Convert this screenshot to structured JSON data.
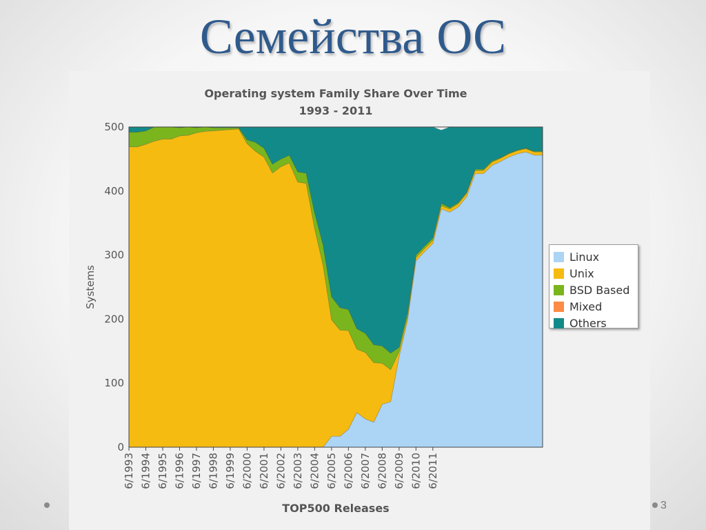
{
  "slide": {
    "title": "Семейства ОС",
    "page_number": "3"
  },
  "chart_data": {
    "type": "area",
    "stacked": true,
    "title": "Operating system Family Share Over Time",
    "subtitle": "1993 - 2011",
    "xlabel": "TOP500 Releases",
    "ylabel": "Systems",
    "ylim": [
      0,
      500
    ],
    "yticks": [
      0,
      100,
      200,
      300,
      400,
      500
    ],
    "xticks": [
      "6/1993",
      "6/1994",
      "6/1995",
      "6/1996",
      "6/1997",
      "6/1998",
      "6/1999",
      "6/2000",
      "6/2001",
      "6/2002",
      "6/2003",
      "6/2004",
      "6/2005",
      "6/2006",
      "6/2007",
      "6/2008",
      "6/2009",
      "6/2010",
      "6/2011"
    ],
    "grid": false,
    "legend_position": "right",
    "series": [
      {
        "name": "Linux",
        "color": "#acd4f5",
        "values": [
          0,
          0,
          0,
          0,
          0,
          0,
          0,
          0,
          0,
          0,
          0,
          0,
          0,
          0,
          0,
          0,
          0,
          0,
          0,
          0,
          0,
          0,
          0,
          0,
          17,
          17,
          28,
          54,
          44,
          39,
          67,
          71,
          141,
          198,
          291,
          305,
          318,
          372,
          367,
          375,
          391,
          427,
          427,
          440,
          446,
          453,
          458,
          461,
          456,
          456
        ]
      },
      {
        "name": "Unix",
        "color": "#f5bb11",
        "values": [
          469,
          469,
          473,
          478,
          481,
          481,
          486,
          487,
          491,
          493,
          494,
          495,
          496,
          497,
          474,
          462,
          453,
          428,
          438,
          444,
          414,
          412,
          341,
          284,
          182,
          166,
          154,
          99,
          104,
          93,
          64,
          50,
          8,
          6,
          5,
          5,
          5,
          5,
          5,
          5,
          5,
          5,
          5,
          5,
          5,
          5,
          5,
          5,
          5,
          5
        ]
      },
      {
        "name": "BSD Based",
        "color": "#7ab51d",
        "values": [
          23,
          23,
          21,
          22,
          19,
          19,
          13,
          13,
          8,
          7,
          5,
          4,
          3,
          2,
          6,
          14,
          14,
          14,
          12,
          12,
          16,
          16,
          25,
          32,
          36,
          35,
          33,
          32,
          30,
          28,
          27,
          26,
          7,
          6,
          4,
          4,
          4,
          4,
          2,
          2,
          2,
          2,
          2,
          2,
          1,
          1,
          1,
          1,
          1,
          1
        ]
      },
      {
        "name": "Mixed",
        "color": "#fd8a45",
        "values": [
          0,
          0,
          0,
          0,
          0,
          0,
          0,
          0,
          0,
          0,
          0,
          0,
          0,
          0,
          0,
          0,
          0,
          0,
          0,
          0,
          0,
          0,
          0,
          0,
          0,
          0,
          0,
          0,
          0,
          0,
          0,
          0,
          0,
          0,
          0,
          0,
          0,
          0,
          0,
          0,
          0,
          0,
          0,
          0,
          0,
          0,
          0,
          0,
          0,
          0
        ]
      },
      {
        "name": "Others",
        "color": "#138a8a",
        "values": [
          8,
          8,
          6,
          0,
          0,
          0,
          1,
          0,
          1,
          0,
          1,
          1,
          1,
          1,
          20,
          24,
          33,
          58,
          50,
          44,
          70,
          72,
          134,
          184,
          265,
          282,
          285,
          315,
          322,
          340,
          342,
          353,
          344,
          290,
          200,
          186,
          173,
          114,
          126,
          118,
          102,
          66,
          66,
          53,
          48,
          41,
          36,
          33,
          38,
          38
        ]
      }
    ]
  }
}
